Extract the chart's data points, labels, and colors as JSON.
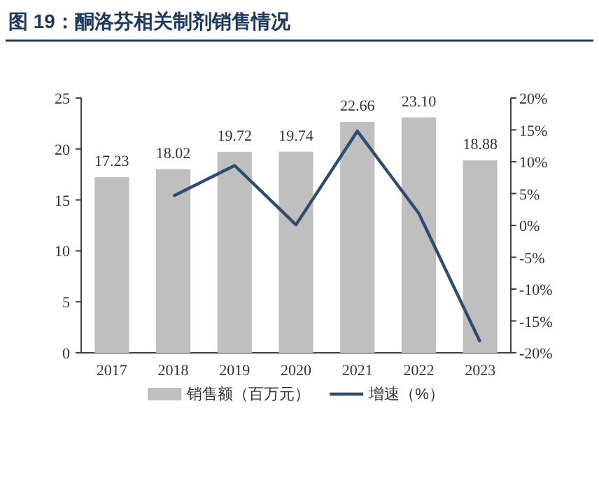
{
  "chart_data": {
    "type": "bar",
    "title": "图 19：酮洛芬相关制剂销售情况",
    "categories": [
      "2017",
      "2018",
      "2019",
      "2020",
      "2021",
      "2022",
      "2023"
    ],
    "series": [
      {
        "name": "销售额（百万元）",
        "color": "#bfbfbf",
        "values": [
          17.23,
          18.02,
          19.72,
          19.74,
          22.66,
          23.1,
          18.88
        ],
        "value_labels": [
          "17.23",
          "18.02",
          "19.72",
          "19.74",
          "22.66",
          "23.10",
          "18.88"
        ]
      },
      {
        "name": "增速（%）",
        "type": "line",
        "axis": "y2",
        "color": "#2f4b6e",
        "values": [
          null,
          4.6,
          9.4,
          0.1,
          14.8,
          1.9,
          -18.3
        ]
      }
    ],
    "ylim": [
      0,
      25
    ],
    "yticks": [
      0,
      5,
      10,
      15,
      20,
      25
    ],
    "y2lim": [
      -20,
      20
    ],
    "y2ticks": [
      {
        "value": -20,
        "label": "-20%"
      },
      {
        "value": -15,
        "label": "-15%"
      },
      {
        "value": -10,
        "label": "-10%"
      },
      {
        "value": -5,
        "label": "-5%"
      },
      {
        "value": 0,
        "label": "0%"
      },
      {
        "value": 5,
        "label": "5%"
      },
      {
        "value": 10,
        "label": "10%"
      },
      {
        "value": 15,
        "label": "15%"
      },
      {
        "value": 20,
        "label": "20%"
      }
    ],
    "legend": "bottom",
    "grid": false,
    "marker": "none",
    "line_style": "solid"
  }
}
